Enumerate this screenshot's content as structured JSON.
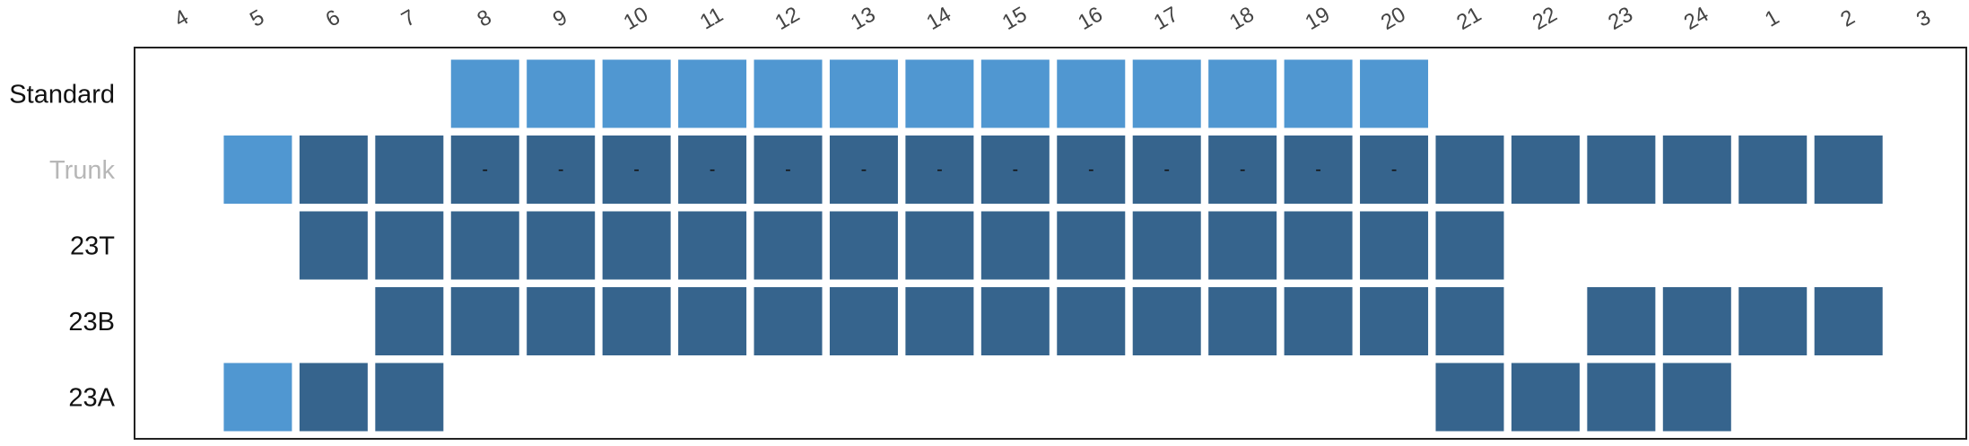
{
  "colors": {
    "light": "#5097D1",
    "dark": "#36648D",
    "frame": "#222222",
    "row_label": "#111111",
    "row_label_muted": "#B7B7B7",
    "tick": "#444444"
  },
  "chart_data": {
    "type": "heatmap",
    "x_categories": [
      "4",
      "5",
      "6",
      "7",
      "8",
      "9",
      "10",
      "11",
      "12",
      "13",
      "14",
      "15",
      "16",
      "17",
      "18",
      "19",
      "20",
      "21",
      "22",
      "23",
      "24",
      "1",
      "2",
      "3"
    ],
    "rows": [
      {
        "label": "Standard",
        "muted": false,
        "cells": [
          {
            "x": "8",
            "shade": "light"
          },
          {
            "x": "9",
            "shade": "light"
          },
          {
            "x": "10",
            "shade": "light"
          },
          {
            "x": "11",
            "shade": "light"
          },
          {
            "x": "12",
            "shade": "light"
          },
          {
            "x": "13",
            "shade": "light"
          },
          {
            "x": "14",
            "shade": "light"
          },
          {
            "x": "15",
            "shade": "light"
          },
          {
            "x": "16",
            "shade": "light"
          },
          {
            "x": "17",
            "shade": "light"
          },
          {
            "x": "18",
            "shade": "light"
          },
          {
            "x": "19",
            "shade": "light"
          },
          {
            "x": "20",
            "shade": "light"
          }
        ]
      },
      {
        "label": "Trunk",
        "muted": true,
        "cells": [
          {
            "x": "5",
            "shade": "light"
          },
          {
            "x": "6",
            "shade": "dark"
          },
          {
            "x": "7",
            "shade": "dark"
          },
          {
            "x": "8",
            "shade": "dark",
            "label": "-"
          },
          {
            "x": "9",
            "shade": "dark",
            "label": "-"
          },
          {
            "x": "10",
            "shade": "dark",
            "label": "-"
          },
          {
            "x": "11",
            "shade": "dark",
            "label": "-"
          },
          {
            "x": "12",
            "shade": "dark",
            "label": "-"
          },
          {
            "x": "13",
            "shade": "dark",
            "label": "-"
          },
          {
            "x": "14",
            "shade": "dark",
            "label": "-"
          },
          {
            "x": "15",
            "shade": "dark",
            "label": "-"
          },
          {
            "x": "16",
            "shade": "dark",
            "label": "-"
          },
          {
            "x": "17",
            "shade": "dark",
            "label": "-"
          },
          {
            "x": "18",
            "shade": "dark",
            "label": "-"
          },
          {
            "x": "19",
            "shade": "dark",
            "label": "-"
          },
          {
            "x": "20",
            "shade": "dark",
            "label": "-"
          },
          {
            "x": "21",
            "shade": "dark"
          },
          {
            "x": "22",
            "shade": "dark"
          },
          {
            "x": "23",
            "shade": "dark"
          },
          {
            "x": "24",
            "shade": "dark"
          },
          {
            "x": "1",
            "shade": "dark"
          },
          {
            "x": "2",
            "shade": "dark"
          }
        ]
      },
      {
        "label": "23T",
        "muted": false,
        "cells": [
          {
            "x": "6",
            "shade": "dark"
          },
          {
            "x": "7",
            "shade": "dark"
          },
          {
            "x": "8",
            "shade": "dark"
          },
          {
            "x": "9",
            "shade": "dark"
          },
          {
            "x": "10",
            "shade": "dark"
          },
          {
            "x": "11",
            "shade": "dark"
          },
          {
            "x": "12",
            "shade": "dark"
          },
          {
            "x": "13",
            "shade": "dark"
          },
          {
            "x": "14",
            "shade": "dark"
          },
          {
            "x": "15",
            "shade": "dark"
          },
          {
            "x": "16",
            "shade": "dark"
          },
          {
            "x": "17",
            "shade": "dark"
          },
          {
            "x": "18",
            "shade": "dark"
          },
          {
            "x": "19",
            "shade": "dark"
          },
          {
            "x": "20",
            "shade": "dark"
          },
          {
            "x": "21",
            "shade": "dark"
          }
        ]
      },
      {
        "label": "23B",
        "muted": false,
        "cells": [
          {
            "x": "7",
            "shade": "dark"
          },
          {
            "x": "8",
            "shade": "dark"
          },
          {
            "x": "9",
            "shade": "dark"
          },
          {
            "x": "10",
            "shade": "dark"
          },
          {
            "x": "11",
            "shade": "dark"
          },
          {
            "x": "12",
            "shade": "dark"
          },
          {
            "x": "13",
            "shade": "dark"
          },
          {
            "x": "14",
            "shade": "dark"
          },
          {
            "x": "15",
            "shade": "dark"
          },
          {
            "x": "16",
            "shade": "dark"
          },
          {
            "x": "17",
            "shade": "dark"
          },
          {
            "x": "18",
            "shade": "dark"
          },
          {
            "x": "19",
            "shade": "dark"
          },
          {
            "x": "20",
            "shade": "dark"
          },
          {
            "x": "21",
            "shade": "dark"
          },
          {
            "x": "23",
            "shade": "dark"
          },
          {
            "x": "24",
            "shade": "dark"
          },
          {
            "x": "1",
            "shade": "dark"
          },
          {
            "x": "2",
            "shade": "dark"
          }
        ]
      },
      {
        "label": "23A",
        "muted": false,
        "cells": [
          {
            "x": "5",
            "shade": "light"
          },
          {
            "x": "6",
            "shade": "dark"
          },
          {
            "x": "7",
            "shade": "dark"
          },
          {
            "x": "21",
            "shade": "dark"
          },
          {
            "x": "22",
            "shade": "dark"
          },
          {
            "x": "23",
            "shade": "dark"
          },
          {
            "x": "24",
            "shade": "dark"
          }
        ]
      }
    ],
    "grid": false,
    "legend": "none"
  }
}
